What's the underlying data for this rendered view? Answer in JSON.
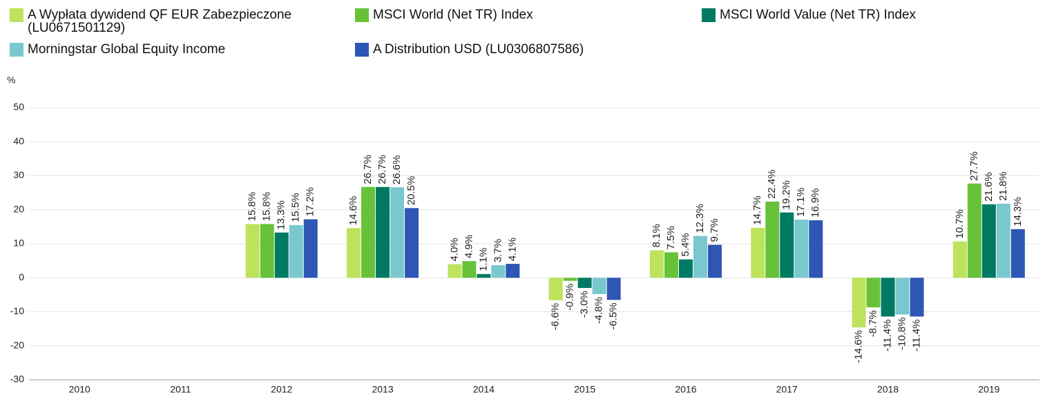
{
  "chart_data": {
    "type": "bar",
    "y_label": "%",
    "categories": [
      "2010",
      "2011",
      "2012",
      "2013",
      "2014",
      "2015",
      "2016",
      "2017",
      "2018",
      "2019"
    ],
    "series": [
      {
        "name": "A Wypłata dywidend QF EUR Zabezpieczone (LU0671501129)",
        "color": "#bde35c",
        "values": [
          null,
          null,
          15.8,
          14.6,
          4.0,
          -6.6,
          8.1,
          14.7,
          -14.6,
          10.7
        ],
        "value_labels": [
          null,
          null,
          "15.8%",
          "14.6%",
          "4.0%",
          "-6.6%",
          "8.1%",
          "14.7%",
          "-14.6%",
          "10.7%"
        ]
      },
      {
        "name": "MSCI World (Net TR) Index",
        "color": "#67c23a",
        "values": [
          null,
          null,
          15.8,
          26.7,
          4.9,
          -0.9,
          7.5,
          22.4,
          -8.7,
          27.7
        ],
        "value_labels": [
          null,
          null,
          "15.8%",
          "26.7%",
          "4.9%",
          "-0.9%",
          "7.5%",
          "22.4%",
          "-8.7%",
          "27.7%"
        ]
      },
      {
        "name": "MSCI World Value (Net TR) Index",
        "color": "#007a62",
        "values": [
          null,
          null,
          13.3,
          26.7,
          1.1,
          -3.0,
          5.4,
          19.2,
          -11.4,
          21.6
        ],
        "value_labels": [
          null,
          null,
          "13.3%",
          "26.7%",
          "1.1%",
          "-3.0%",
          "5.4%",
          "19.2%",
          "-11.4%",
          "21.6%"
        ]
      },
      {
        "name": "Morningstar Global Equity Income",
        "color": "#79c8cd",
        "values": [
          null,
          null,
          15.5,
          26.6,
          3.7,
          -4.8,
          12.3,
          17.1,
          -10.8,
          21.8
        ],
        "value_labels": [
          null,
          null,
          "15.5%",
          "26.6%",
          "3.7%",
          "-4.8%",
          "12.3%",
          "17.1%",
          "-10.8%",
          "21.8%"
        ]
      },
      {
        "name": "A Distribution USD (LU0306807586)",
        "color": "#2e56b4",
        "values": [
          null,
          null,
          17.2,
          20.5,
          4.1,
          -6.5,
          9.7,
          16.9,
          -11.4,
          14.3
        ],
        "value_labels": [
          null,
          null,
          "17.2%",
          "20.5%",
          "4.1%",
          "-6.5%",
          "9.7%",
          "16.9%",
          "-11.4%",
          "14.3%"
        ]
      }
    ],
    "ylim": [
      -30,
      50
    ],
    "yticks": [
      -30,
      -20,
      -10,
      0,
      10,
      20,
      30,
      40,
      50
    ],
    "grid": true
  }
}
